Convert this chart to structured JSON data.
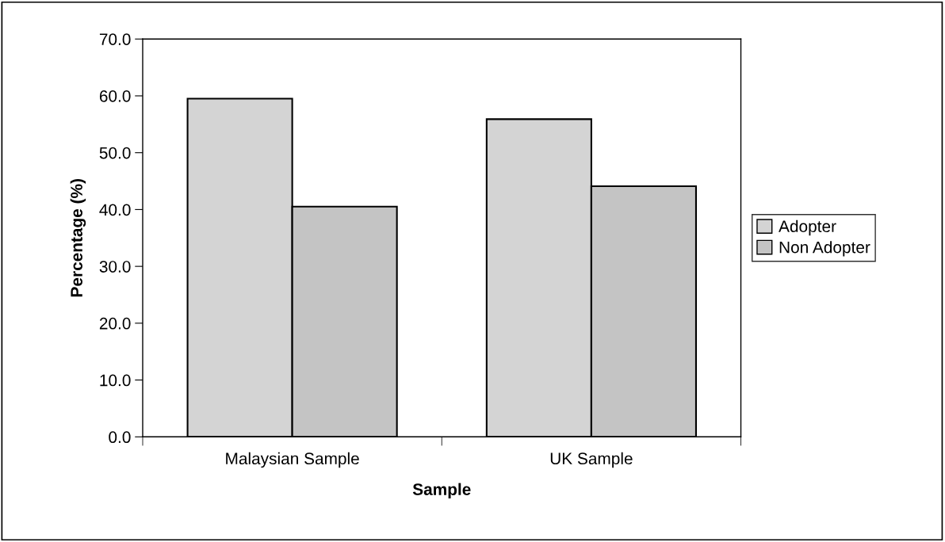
{
  "chart_data": {
    "type": "bar",
    "xlabel": "Sample",
    "ylabel": "Percentage (%)",
    "categories": [
      "Malaysian Sample",
      "UK Sample"
    ],
    "series": [
      {
        "name": "Adopter",
        "color": "#d4d4d4",
        "values": [
          59.5,
          55.9
        ]
      },
      {
        "name": "Non Adopter",
        "color": "#c4c4c4",
        "values": [
          40.5,
          44.1
        ]
      }
    ],
    "ylim": [
      0,
      70
    ],
    "yticks": [
      {
        "value": 0,
        "label": "0.0"
      },
      {
        "value": 10,
        "label": "10.0"
      },
      {
        "value": 20,
        "label": "20.0"
      },
      {
        "value": 30,
        "label": "30.0"
      },
      {
        "value": 40,
        "label": "40.0"
      },
      {
        "value": 50,
        "label": "50.0"
      },
      {
        "value": 60,
        "label": "60.0"
      },
      {
        "value": 70,
        "label": "70.0"
      }
    ],
    "grid": false,
    "legend": "right"
  }
}
